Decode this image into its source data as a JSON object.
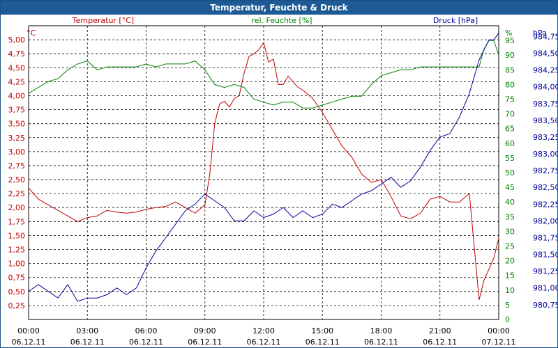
{
  "chart_data": {
    "type": "line",
    "title": "Temperatur, Feuchte & Druck",
    "x_ticks": [
      {
        "time": "00:00",
        "date": "06.12.11"
      },
      {
        "time": "03:00",
        "date": "06.12.11"
      },
      {
        "time": "06:00",
        "date": "06.12.11"
      },
      {
        "time": "09:00",
        "date": "06.12.11"
      },
      {
        "time": "12:00",
        "date": "06.12.11"
      },
      {
        "time": "15:00",
        "date": "06.12.11"
      },
      {
        "time": "18:00",
        "date": "06.12.11"
      },
      {
        "time": "21:00",
        "date": "06.12.11"
      },
      {
        "time": "00:00",
        "date": "07.12.11"
      }
    ],
    "xlim": [
      0,
      24
    ],
    "axes": {
      "temperature": {
        "label": "Temperatur [°C]",
        "unit": "°C",
        "color": "#c00000",
        "ylim": [
          0,
          5.25
        ],
        "ticks": [
          "0,25",
          "0,50",
          "0,75",
          "1,00",
          "1,25",
          "1,50",
          "1,75",
          "2,00",
          "2,25",
          "2,50",
          "2,75",
          "3,00",
          "3,25",
          "3,50",
          "3,75",
          "4,00",
          "4,25",
          "4,50",
          "4,75",
          "5,00"
        ]
      },
      "humidity": {
        "label": "rel. Feuchte [%]",
        "unit": "%",
        "color": "#008000",
        "ylim": [
          0,
          100
        ],
        "ticks": [
          "0",
          "5",
          "10",
          "15",
          "20",
          "25",
          "30",
          "35",
          "40",
          "45",
          "50",
          "55",
          "60",
          "65",
          "70",
          "75",
          "80",
          "85",
          "90",
          "95"
        ]
      },
      "pressure": {
        "label": "Druck [hPa]",
        "unit": "hPa",
        "color": "#000099",
        "ylim": [
          980.53,
          984.91
        ],
        "ticks": [
          "980,75",
          "981,00",
          "981,25",
          "981,50",
          "981,75",
          "982,00",
          "982,25",
          "982,50",
          "982,75",
          "983,00",
          "983,25",
          "983,50",
          "983,75",
          "984,00",
          "984,25",
          "984,50",
          "984,75"
        ]
      }
    },
    "series": [
      {
        "name": "Temperatur [°C]",
        "axis": "temperature",
        "color": "#c00000",
        "x": [
          0,
          0.5,
          1,
          1.5,
          2,
          2.5,
          3,
          3.5,
          4,
          4.5,
          5,
          5.5,
          6,
          6.5,
          7,
          7.5,
          8,
          8.5,
          9,
          9.25,
          9.5,
          9.75,
          10,
          10.25,
          10.5,
          10.75,
          11,
          11.25,
          11.5,
          11.75,
          12,
          12.25,
          12.5,
          12.75,
          13,
          13.25,
          13.5,
          13.75,
          14,
          14.5,
          15,
          15.5,
          16,
          16.5,
          17,
          17.5,
          18,
          18.5,
          19,
          19.5,
          20,
          20.5,
          21,
          21.5,
          22,
          22.5,
          23,
          23.25,
          23.5,
          23.75,
          24
        ],
        "values": [
          2.35,
          2.15,
          2.05,
          1.95,
          1.85,
          1.75,
          1.82,
          1.85,
          1.95,
          1.92,
          1.9,
          1.92,
          1.97,
          2.0,
          2.02,
          2.1,
          2.0,
          1.9,
          2.05,
          2.6,
          3.5,
          3.85,
          3.9,
          3.8,
          3.95,
          4.0,
          4.4,
          4.7,
          4.75,
          4.82,
          4.95,
          4.6,
          4.65,
          4.2,
          4.2,
          4.35,
          4.25,
          4.15,
          4.1,
          3.95,
          3.7,
          3.4,
          3.1,
          2.9,
          2.6,
          2.45,
          2.5,
          2.2,
          1.85,
          1.8,
          1.9,
          2.15,
          2.2,
          2.1,
          2.1,
          2.25,
          0.35,
          0.7,
          0.9,
          1.1,
          1.45
        ]
      },
      {
        "name": "rel. Feuchte [%]",
        "axis": "humidity",
        "color": "#008000",
        "x": [
          0,
          0.5,
          1,
          1.5,
          2,
          2.5,
          3,
          3.5,
          4,
          4.5,
          5,
          5.5,
          6,
          6.5,
          7,
          7.5,
          8,
          8.5,
          9,
          9.5,
          10,
          10.5,
          11,
          11.5,
          12,
          12.5,
          13,
          13.5,
          14,
          14.5,
          15,
          15.5,
          16,
          16.5,
          17,
          17.5,
          18,
          18.5,
          19,
          19.5,
          20,
          20.5,
          21,
          21.5,
          22,
          22.5,
          23,
          23.25,
          23.5,
          23.75,
          24
        ],
        "values": [
          77,
          79,
          81,
          82,
          85,
          87,
          88,
          85,
          86,
          86,
          86,
          86,
          87,
          86,
          87,
          87,
          87,
          88,
          85,
          80,
          79,
          80,
          79,
          75,
          74,
          73,
          74,
          74,
          72,
          72,
          73,
          74,
          75,
          76,
          76,
          80,
          83,
          84,
          85,
          85,
          86,
          86,
          86,
          86,
          86,
          86,
          86,
          92,
          95,
          95,
          90
        ]
      },
      {
        "name": "Druck [hPa]",
        "axis": "pressure",
        "color": "#000099",
        "x": [
          0,
          0.5,
          1,
          1.5,
          2,
          2.5,
          3,
          3.5,
          4,
          4.5,
          5,
          5.5,
          6,
          6.5,
          7,
          7.5,
          8,
          8.5,
          9,
          9.5,
          10,
          10.5,
          11,
          11.5,
          12,
          12.5,
          13,
          13.5,
          14,
          14.5,
          15,
          15.5,
          16,
          16.5,
          17,
          17.5,
          18,
          18.5,
          19,
          19.5,
          20,
          20.5,
          21,
          21.5,
          22,
          22.5,
          23,
          23.25,
          23.5,
          23.75,
          24
        ],
        "values": [
          980.95,
          981.05,
          980.95,
          980.85,
          981.05,
          980.8,
          980.85,
          980.85,
          980.9,
          981.0,
          980.9,
          981.0,
          981.3,
          981.55,
          981.75,
          981.95,
          982.15,
          982.25,
          982.4,
          982.3,
          982.2,
          982.0,
          982.0,
          982.15,
          982.05,
          982.1,
          982.2,
          982.05,
          982.15,
          982.05,
          982.1,
          982.25,
          982.2,
          982.3,
          982.4,
          982.45,
          982.55,
          982.65,
          982.5,
          982.6,
          982.8,
          983.05,
          983.25,
          983.3,
          983.55,
          983.9,
          984.4,
          984.55,
          984.7,
          984.7,
          984.8
        ]
      }
    ],
    "grid": true,
    "legend": "top"
  }
}
